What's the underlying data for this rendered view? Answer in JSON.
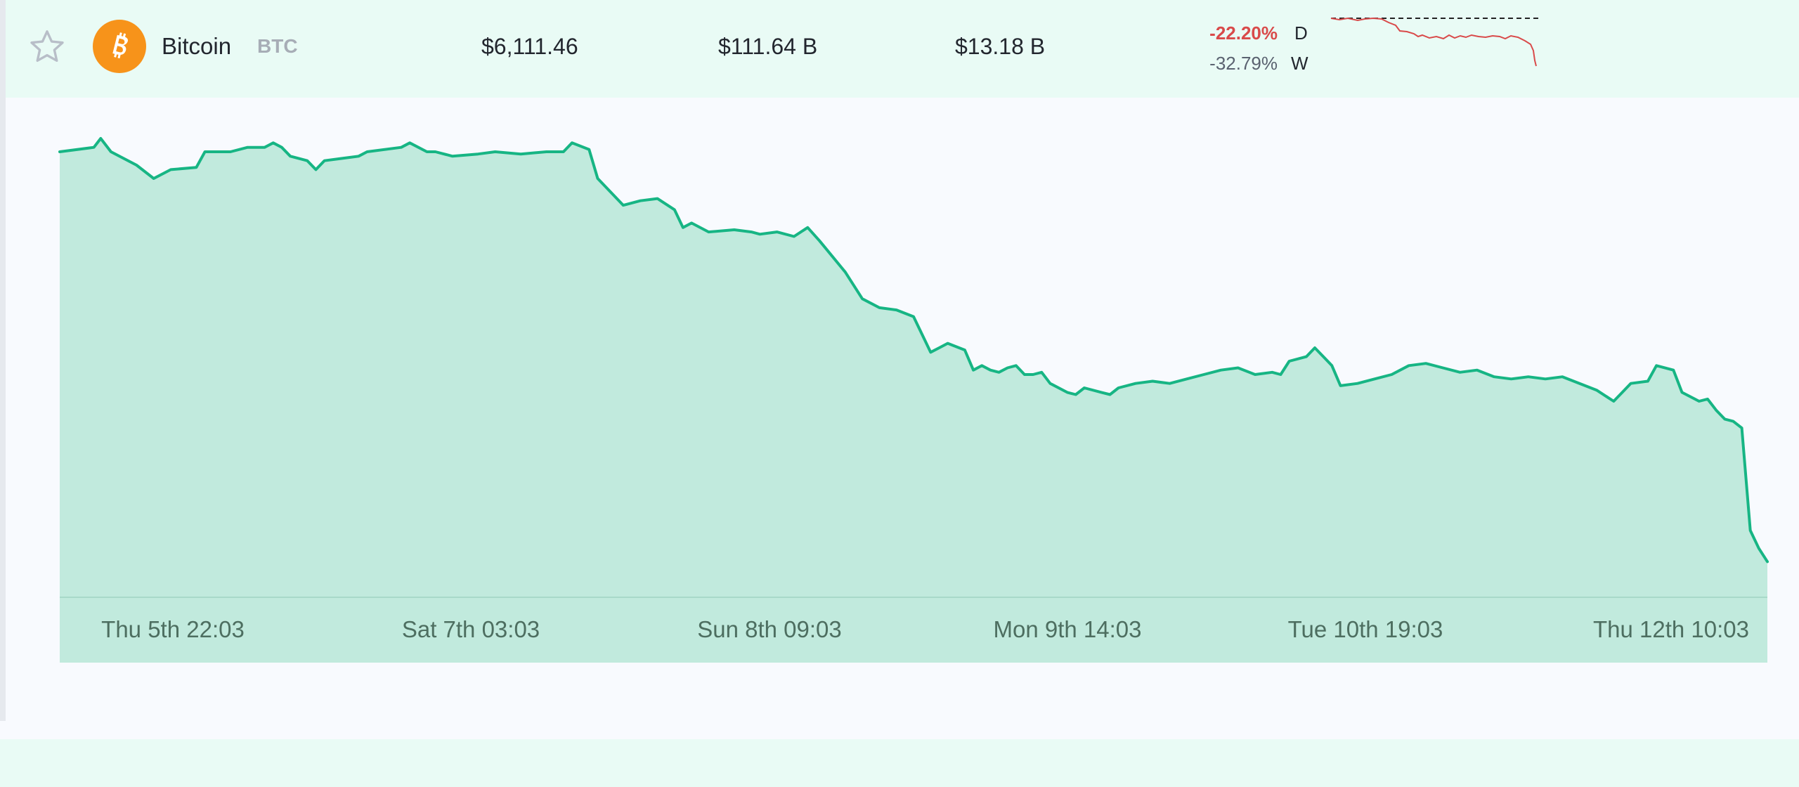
{
  "row": {
    "name": "Bitcoin",
    "symbol": "BTC",
    "price": "$6,111.46",
    "market_cap": "$111.64 B",
    "volume": "$13.18 B",
    "change_day": "-22.20%",
    "change_day_label": "D",
    "change_week": "-32.79%",
    "change_week_label": "W",
    "logo_icon": "bitcoin-logo",
    "favorite_icon": "star-outline-icon"
  },
  "colors": {
    "row_bg": "#e9fbf5",
    "line": "#17b584",
    "area": "#c1eadd",
    "negative": "#d94a4a",
    "coin": "#f7931a"
  },
  "chart_data": {
    "type": "area",
    "title": "",
    "xlabel": "",
    "ylabel": "",
    "x_tick_labels": [
      "Thu 5th 22:03",
      "Sat 7th 03:03",
      "Sun 8th 09:03",
      "Mon 9th 14:03",
      "Tue 10th 19:03",
      "Thu 12th 10:03"
    ],
    "y_axis": "none",
    "grid": false,
    "values": [
      [
        0,
        100
      ],
      [
        0.02,
        101
      ],
      [
        0.024,
        103
      ],
      [
        0.03,
        100
      ],
      [
        0.045,
        97
      ],
      [
        0.055,
        94
      ],
      [
        0.065,
        96
      ],
      [
        0.08,
        96.5
      ],
      [
        0.085,
        100
      ],
      [
        0.1,
        100
      ],
      [
        0.11,
        101
      ],
      [
        0.12,
        101
      ],
      [
        0.125,
        102
      ],
      [
        0.13,
        101
      ],
      [
        0.135,
        99
      ],
      [
        0.145,
        98
      ],
      [
        0.15,
        96
      ],
      [
        0.155,
        98
      ],
      [
        0.165,
        98.5
      ],
      [
        0.175,
        99
      ],
      [
        0.18,
        100
      ],
      [
        0.2,
        101
      ],
      [
        0.205,
        102
      ],
      [
        0.215,
        100
      ],
      [
        0.22,
        100
      ],
      [
        0.23,
        99
      ],
      [
        0.245,
        99.5
      ],
      [
        0.255,
        100
      ],
      [
        0.27,
        99.5
      ],
      [
        0.285,
        100
      ],
      [
        0.295,
        100
      ],
      [
        0.3,
        102
      ],
      [
        0.31,
        100.5
      ],
      [
        0.315,
        94
      ],
      [
        0.33,
        88
      ],
      [
        0.34,
        89
      ],
      [
        0.35,
        89.5
      ],
      [
        0.36,
        87
      ],
      [
        0.365,
        83
      ],
      [
        0.37,
        84
      ],
      [
        0.38,
        82
      ],
      [
        0.395,
        82.5
      ],
      [
        0.405,
        82
      ],
      [
        0.41,
        81.5
      ],
      [
        0.42,
        82
      ],
      [
        0.43,
        81
      ],
      [
        0.438,
        83
      ],
      [
        0.445,
        80
      ],
      [
        0.46,
        73
      ],
      [
        0.47,
        67
      ],
      [
        0.48,
        65
      ],
      [
        0.49,
        64.5
      ],
      [
        0.5,
        63
      ],
      [
        0.51,
        55
      ],
      [
        0.515,
        56
      ],
      [
        0.52,
        57
      ],
      [
        0.53,
        55.5
      ],
      [
        0.535,
        51
      ],
      [
        0.54,
        52
      ],
      [
        0.545,
        51
      ],
      [
        0.55,
        50.5
      ],
      [
        0.555,
        51.5
      ],
      [
        0.56,
        52
      ],
      [
        0.565,
        50
      ],
      [
        0.57,
        50
      ],
      [
        0.575,
        50.5
      ],
      [
        0.58,
        48
      ],
      [
        0.59,
        46
      ],
      [
        0.595,
        45.5
      ],
      [
        0.6,
        47
      ],
      [
        0.61,
        46
      ],
      [
        0.615,
        45.5
      ],
      [
        0.62,
        47
      ],
      [
        0.63,
        48
      ],
      [
        0.64,
        48.5
      ],
      [
        0.65,
        48
      ],
      [
        0.66,
        49
      ],
      [
        0.67,
        50
      ],
      [
        0.68,
        51
      ],
      [
        0.69,
        51.5
      ],
      [
        0.7,
        50
      ],
      [
        0.71,
        50.5
      ],
      [
        0.715,
        50
      ],
      [
        0.72,
        53
      ],
      [
        0.73,
        54
      ],
      [
        0.735,
        56
      ],
      [
        0.74,
        54
      ],
      [
        0.745,
        52
      ],
      [
        0.75,
        47.5
      ],
      [
        0.76,
        48
      ],
      [
        0.77,
        49
      ],
      [
        0.78,
        50
      ],
      [
        0.79,
        52
      ],
      [
        0.8,
        52.5
      ],
      [
        0.81,
        51.5
      ],
      [
        0.82,
        50.5
      ],
      [
        0.83,
        51
      ],
      [
        0.84,
        49.5
      ],
      [
        0.85,
        49
      ],
      [
        0.86,
        49.5
      ],
      [
        0.87,
        49
      ],
      [
        0.88,
        49.5
      ],
      [
        0.89,
        48
      ],
      [
        0.9,
        46.5
      ],
      [
        0.91,
        44
      ],
      [
        0.915,
        46
      ],
      [
        0.92,
        48
      ],
      [
        0.93,
        48.5
      ],
      [
        0.935,
        52
      ],
      [
        0.945,
        51
      ],
      [
        0.95,
        46
      ],
      [
        0.96,
        44
      ],
      [
        0.965,
        44.5
      ],
      [
        0.97,
        42
      ],
      [
        0.975,
        40
      ],
      [
        0.98,
        39.5
      ],
      [
        0.985,
        38
      ],
      [
        0.99,
        15
      ],
      [
        0.995,
        11
      ],
      [
        1,
        8
      ]
    ]
  }
}
